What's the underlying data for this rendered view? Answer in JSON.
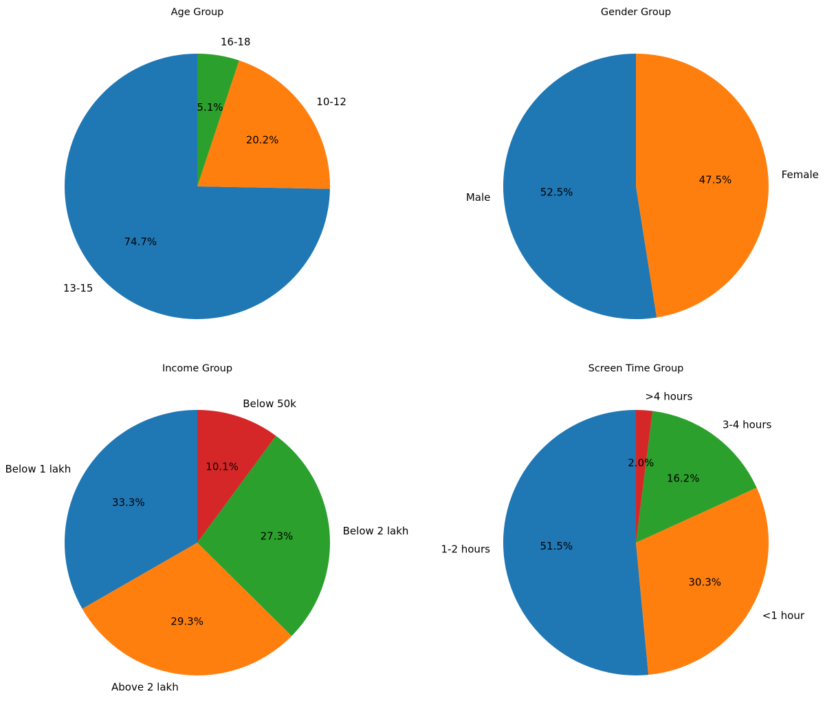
{
  "chart_data": [
    {
      "type": "pie",
      "title": "Age Group",
      "labels": [
        "13-15",
        "10-12",
        "16-18"
      ],
      "values": [
        74.7,
        20.2,
        5.1
      ],
      "percent_labels": [
        "74.7%",
        "20.2%",
        "5.1%"
      ],
      "colors": [
        "#1f77b4",
        "#ff7f0e",
        "#2ca02c"
      ],
      "start_angle_deg": 90,
      "direction": "counterclockwise"
    },
    {
      "type": "pie",
      "title": "Gender Group",
      "labels": [
        "Male",
        "Female"
      ],
      "values": [
        52.5,
        47.5
      ],
      "percent_labels": [
        "52.5%",
        "47.5%"
      ],
      "colors": [
        "#1f77b4",
        "#ff7f0e"
      ],
      "start_angle_deg": 90,
      "direction": "counterclockwise"
    },
    {
      "type": "pie",
      "title": "Income Group",
      "labels": [
        "Below 1 lakh",
        "Above 2 lakh",
        "Below 2 lakh",
        "Below 50k"
      ],
      "values": [
        33.3,
        29.3,
        27.3,
        10.1
      ],
      "percent_labels": [
        "33.3%",
        "29.3%",
        "27.3%",
        "10.1%"
      ],
      "colors": [
        "#1f77b4",
        "#ff7f0e",
        "#2ca02c",
        "#d62728"
      ],
      "start_angle_deg": 90,
      "direction": "counterclockwise"
    },
    {
      "type": "pie",
      "title": "Screen Time Group",
      "labels": [
        "1-2 hours",
        "<1 hour",
        "3-4 hours",
        ">4 hours"
      ],
      "values": [
        51.5,
        30.3,
        16.2,
        2.0
      ],
      "percent_labels": [
        "51.5%",
        "30.3%",
        "16.2%",
        "2.0%"
      ],
      "colors": [
        "#1f77b4",
        "#ff7f0e",
        "#2ca02c",
        "#d62728"
      ],
      "start_angle_deg": 90,
      "direction": "counterclockwise"
    }
  ]
}
